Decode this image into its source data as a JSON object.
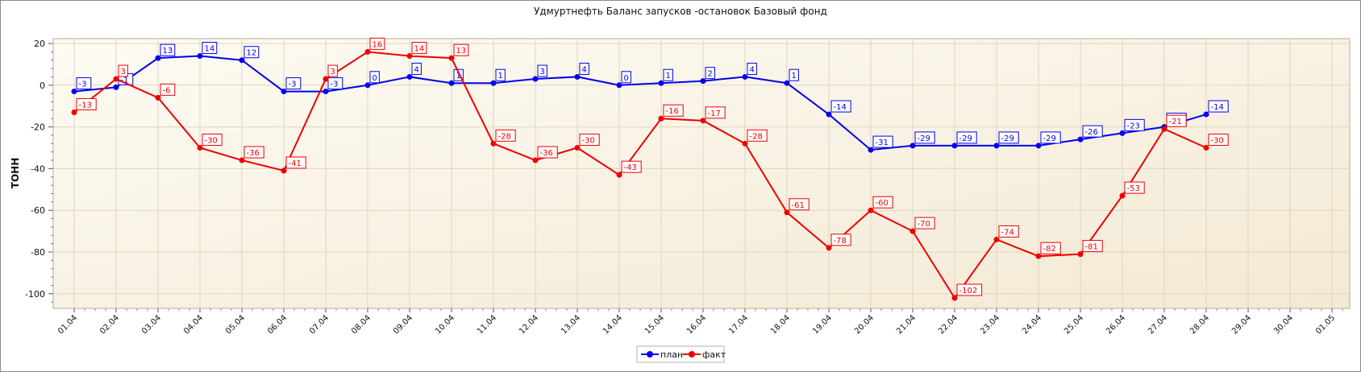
{
  "chart_data": {
    "type": "line",
    "title": "Удмуртнефть Баланс запусков -остановок Базовый фонд",
    "xlabel": "",
    "ylabel": "ТОНН",
    "ylim": [
      -105,
      22
    ],
    "yticks": [
      20,
      0,
      -20,
      -40,
      -60,
      -80,
      -100
    ],
    "grid": true,
    "legend_position": "bottom-center",
    "categories": [
      "01.04",
      "02.04",
      "03.04",
      "04.04",
      "05.04",
      "06.04",
      "07.04",
      "08.04",
      "09.04",
      "10.04",
      "11.04",
      "12.04",
      "13.04",
      "14.04",
      "15.04",
      "16.04",
      "17.04",
      "18.04",
      "19.04",
      "20.04",
      "21.04",
      "22.04",
      "23.04",
      "24.04",
      "25.04",
      "26.04",
      "27.04",
      "28.04",
      "29.04",
      "30.04",
      "01.05"
    ],
    "series": [
      {
        "name": "план",
        "color": "#0000ee",
        "values": [
          -3,
          -1,
          13,
          14,
          12,
          -3,
          -3,
          0,
          4,
          1,
          1,
          3,
          4,
          0,
          1,
          2,
          4,
          1,
          -14,
          -31,
          -29,
          -29,
          -29,
          -29,
          -26,
          -23,
          -20,
          -14,
          null,
          null,
          null
        ],
        "labels": [
          "-3",
          "-1",
          "13",
          "14",
          "12",
          "-3",
          "-3",
          "0",
          "4",
          "1",
          "1",
          "3",
          "4",
          "0",
          "1",
          "2",
          "4",
          "1",
          "-14",
          "-31",
          "-29",
          "-29",
          "-29",
          "-29",
          "-26",
          "-23",
          "-20",
          "-14",
          "",
          "",
          ""
        ]
      },
      {
        "name": "факт",
        "color": "#ee0000",
        "values": [
          -13,
          3,
          -6,
          -30,
          -36,
          -41,
          3,
          16,
          14,
          13,
          -28,
          -36,
          -30,
          -43,
          -16,
          -17,
          -28,
          -61,
          -78,
          -60,
          -70,
          -102,
          -74,
          -82,
          -81,
          -53,
          -21,
          -30,
          null,
          null,
          null
        ],
        "labels": [
          "-13",
          "3",
          "-6",
          "-30",
          "-36",
          "-41",
          "3",
          "16",
          "14",
          "13",
          "-28",
          "-36",
          "-30",
          "-43",
          "-16",
          "-17",
          "-28",
          "-61",
          "-78",
          "-60",
          "-70",
          "-102",
          "-74",
          "-82",
          "-81",
          "-53",
          "-21",
          "-30",
          "",
          "",
          ""
        ]
      }
    ]
  }
}
